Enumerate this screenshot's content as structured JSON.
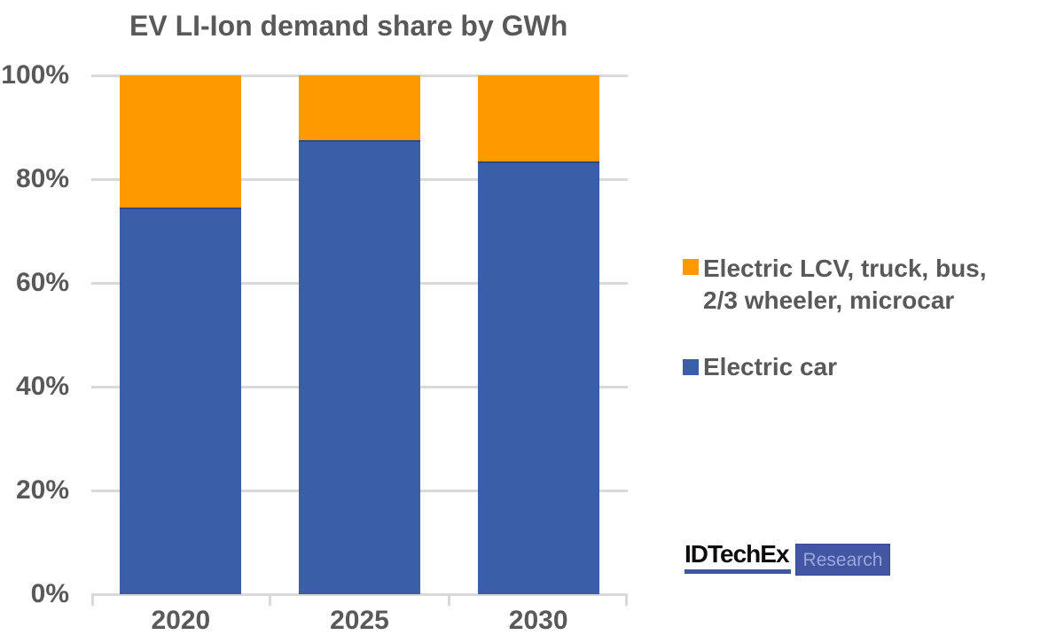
{
  "title": {
    "text": "EV LI-Ion demand share by GWh",
    "color": "#595959"
  },
  "chart_data": {
    "type": "bar",
    "stacked": true,
    "title": "EV LI-Ion demand share by GWh",
    "categories": [
      "2020",
      "2025",
      "2030"
    ],
    "series": [
      {
        "name": "Electric car",
        "color": "#3A5EA8",
        "edge_color": "#2C4A87",
        "values": [
          74.5,
          87.5,
          83.5
        ]
      },
      {
        "name": "Electric LCV, truck, bus, 2/3 wheeler, microcar",
        "color": "#FF9900",
        "edge_color": "",
        "values": [
          25.5,
          12.5,
          16.5
        ]
      }
    ],
    "xlabel": "",
    "ylabel": "",
    "ylim": [
      0,
      100
    ],
    "y_ticks": [
      "0%",
      "20%",
      "40%",
      "60%",
      "80%",
      "100%"
    ],
    "y_unit": "%",
    "grid": true,
    "gridline_color": "#D9D9D9",
    "axis_color": "#D9D9D9",
    "text_color": "#595959",
    "legend_position": "right"
  },
  "legend": {
    "items": [
      {
        "color": "#FF9900",
        "lines": [
          "Electric LCV, truck, bus,",
          "2/3 wheeler, microcar"
        ]
      },
      {
        "color": "#3A5EA8",
        "lines": [
          "Electric car"
        ]
      }
    ]
  },
  "logo": {
    "brand": "IDTechEx",
    "suffix": "Research",
    "brand_color": "#0d0d0d",
    "underline_color": "#3A57A8",
    "box_color": "#4356A4",
    "box_border_color": "#36488F",
    "suffix_text_color": "#9BA7D8"
  }
}
